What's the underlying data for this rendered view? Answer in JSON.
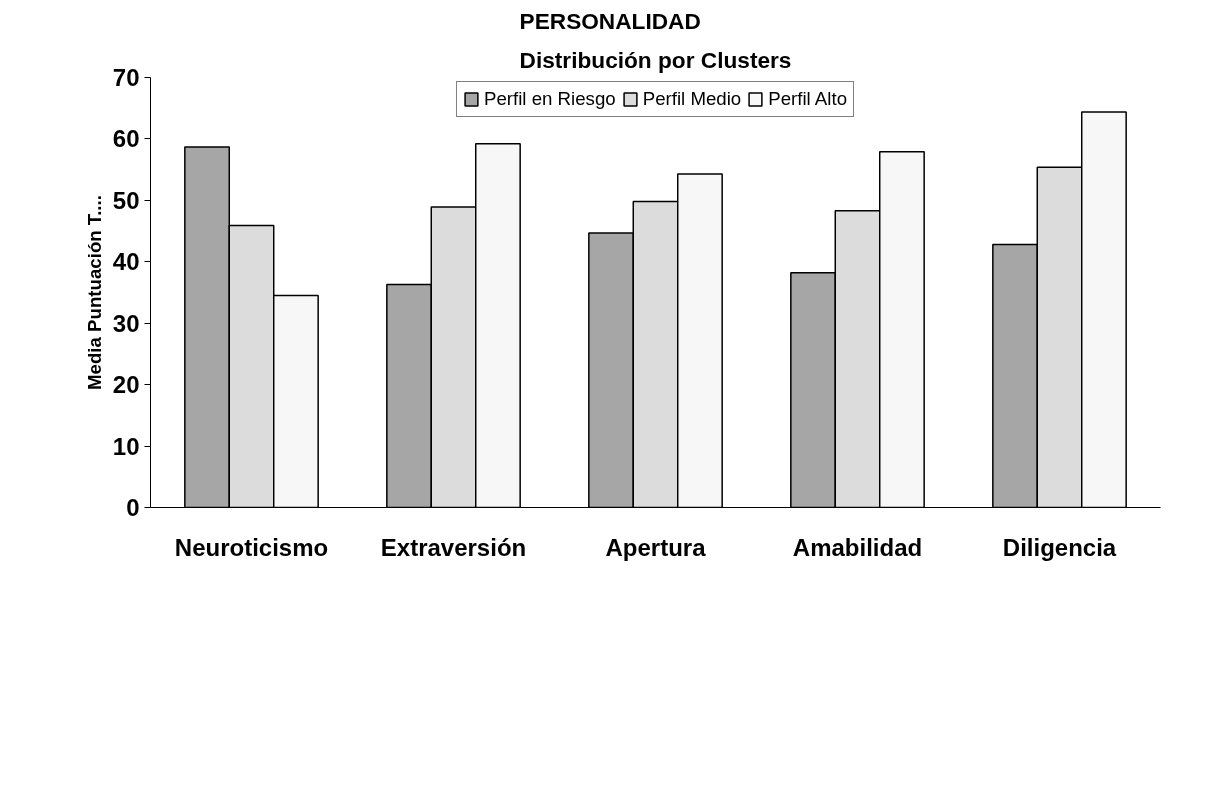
{
  "chart_data": {
    "type": "bar",
    "title": "PERSONALIDAD\nDistribución por Clusters",
    "ylabel": "Media Puntuación T....",
    "categories": [
      "Neuroticismo",
      "Extraversión",
      "Apertura",
      "Amabilidad",
      "Diligencia"
    ],
    "series": [
      {
        "name": "Perfil en Riesgo",
        "color": "#a6a6a6",
        "values": [
          58.7,
          36.3,
          44.7,
          38.2,
          42.8
        ]
      },
      {
        "name": "Perfil Medio",
        "color": "#dcdcdc",
        "values": [
          45.9,
          48.9,
          49.8,
          48.3,
          55.4
        ]
      },
      {
        "name": "Perfil Alto",
        "color": "#f7f7f7",
        "values": [
          34.5,
          59.2,
          54.3,
          57.9,
          64.4
        ]
      }
    ],
    "ylim": [
      0,
      70
    ],
    "yticks": [
      0,
      10,
      20,
      30,
      40,
      50,
      60,
      70
    ],
    "grid": false,
    "legend": "top"
  }
}
